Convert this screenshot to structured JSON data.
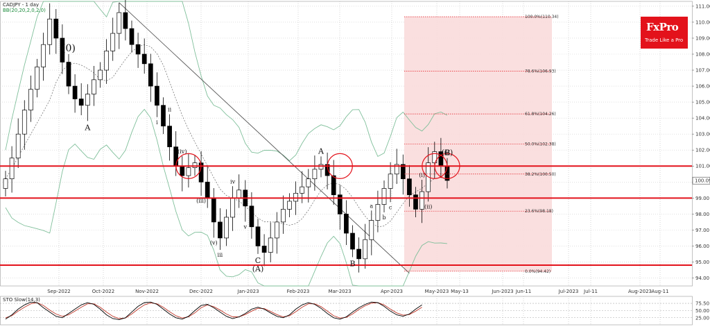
{
  "header": {
    "symbol_label": "CADJPY - 1 day",
    "indicator_label": "BB(20,20,2,0,2,0)",
    "stochastic_label": "STO Slow(14,3)"
  },
  "logo": {
    "name": "FxPro",
    "tagline": "Trade Like a Pro"
  },
  "colors": {
    "support_resistance": "#e3121b",
    "fib_zone": "#f9dcdc",
    "bollinger": "#7fbf9a",
    "trendline": "#555555",
    "candle_up": "#ffffff",
    "candle_down": "#000000",
    "stoch_k": "#000000",
    "stoch_d": "#c0392b"
  },
  "chart_data": [
    {
      "type": "candlestick",
      "y_range": [
        93.5,
        111.3
      ],
      "ylabel": "",
      "y_ticks": [
        "111.00",
        "110.00",
        "109.00",
        "108.00",
        "107.00",
        "106.00",
        "105.00",
        "104.00",
        "103.00",
        "102.00",
        "101.00",
        "100.00",
        "99.00",
        "98.00",
        "97.00",
        "96.00",
        "95.00",
        "94.00"
      ],
      "current_price": "100.09",
      "x_tick_labels": [
        "Sep-2022",
        "Oct-2022",
        "Nov-2022",
        "Dec-2022",
        "Jan-2023",
        "Feb-2023",
        "Mar-2023",
        "Apr-2023",
        "May-2023",
        "May-13",
        "Jun-2023",
        "Jun-11",
        "Jul-2023",
        "Jul-11",
        "Aug-2023",
        "Aug-11"
      ],
      "horizontal_levels": [
        101.0,
        99.0,
        94.8
      ],
      "fibonacci_levels": [
        {
          "label": "100.0%(110.34)",
          "value": 110.34
        },
        {
          "label": "78.6%(106.93)",
          "value": 106.93
        },
        {
          "label": "61.8%(104.26)",
          "value": 104.26
        },
        {
          "label": "50.0%(102.38)",
          "value": 102.38
        },
        {
          "label": "38.2%(100.50)",
          "value": 100.5
        },
        {
          "label": "23.6%(98.18)",
          "value": 98.18
        },
        {
          "label": "0.0%(94.42)",
          "value": 94.42
        }
      ],
      "wave_labels": [
        "(0)",
        "A",
        "B",
        "C",
        "(A)",
        "A",
        "B",
        "(B)",
        "C",
        "(iv)",
        "(iii)",
        "(v)",
        "(i)",
        "(ii)",
        "i",
        "ii",
        "iii",
        "iv",
        "v",
        "a",
        "b",
        "c",
        "iii"
      ],
      "series": [
        {
          "name": "CADJPY",
          "close": [
            100.2,
            101.5,
            103.0,
            104.5,
            105.8,
            107.2,
            108.6,
            110.2,
            109.0,
            107.5,
            106.0,
            105.2,
            104.8,
            105.5,
            106.4,
            107.0,
            108.2,
            109.3,
            110.6,
            109.6,
            108.6,
            108.0,
            107.4,
            106.0,
            104.8,
            103.5,
            102.2,
            101.0,
            100.4,
            100.9,
            101.2,
            100.0,
            99.0,
            97.5,
            96.5,
            97.8,
            99.0,
            99.5,
            98.5,
            97.2,
            96.0,
            95.6,
            96.5,
            97.5,
            98.3,
            98.8,
            99.3,
            99.7,
            100.2,
            100.8,
            101.1,
            100.4,
            99.2,
            98.0,
            96.8,
            95.8,
            95.2,
            96.4,
            97.6,
            98.6,
            99.6,
            100.5,
            101.1,
            100.2,
            99.2,
            98.3,
            99.4,
            101.2,
            101.9,
            101.0,
            100.1
          ]
        }
      ]
    },
    {
      "type": "line",
      "title": "STO Slow(14,3)",
      "y_range": [
        0,
        100
      ],
      "y_ticks": [
        "75.50",
        "50.00",
        "25.00"
      ],
      "y_tick_values": [
        75.5,
        50,
        25
      ],
      "series": [
        {
          "name": "%K",
          "values": [
            20,
            35,
            55,
            70,
            80,
            78,
            60,
            45,
            30,
            25,
            40,
            55,
            70,
            78,
            72,
            55,
            35,
            22,
            18,
            25,
            45,
            65,
            78,
            80,
            72,
            55,
            38,
            25,
            20,
            30,
            50,
            68,
            72,
            60,
            45,
            30,
            22,
            28,
            40,
            55,
            62,
            55,
            42,
            30,
            25,
            35,
            55,
            70,
            78,
            72,
            58,
            40,
            25,
            20,
            28,
            45,
            60,
            72,
            80,
            78,
            65,
            48,
            35,
            30,
            38,
            55,
            70
          ]
        },
        {
          "name": "%D",
          "values": [
            25,
            32,
            48,
            62,
            74,
            78,
            68,
            52,
            38,
            30,
            35,
            48,
            62,
            74,
            74,
            62,
            45,
            30,
            22,
            24,
            38,
            55,
            70,
            77,
            74,
            62,
            46,
            32,
            24,
            28,
            42,
            60,
            70,
            64,
            52,
            38,
            28,
            28,
            36,
            48,
            58,
            57,
            47,
            36,
            28,
            32,
            46,
            62,
            74,
            74,
            64,
            48,
            32,
            24,
            26,
            38,
            54,
            67,
            76,
            78,
            70,
            55,
            42,
            34,
            36,
            48,
            62
          ]
        }
      ]
    }
  ]
}
